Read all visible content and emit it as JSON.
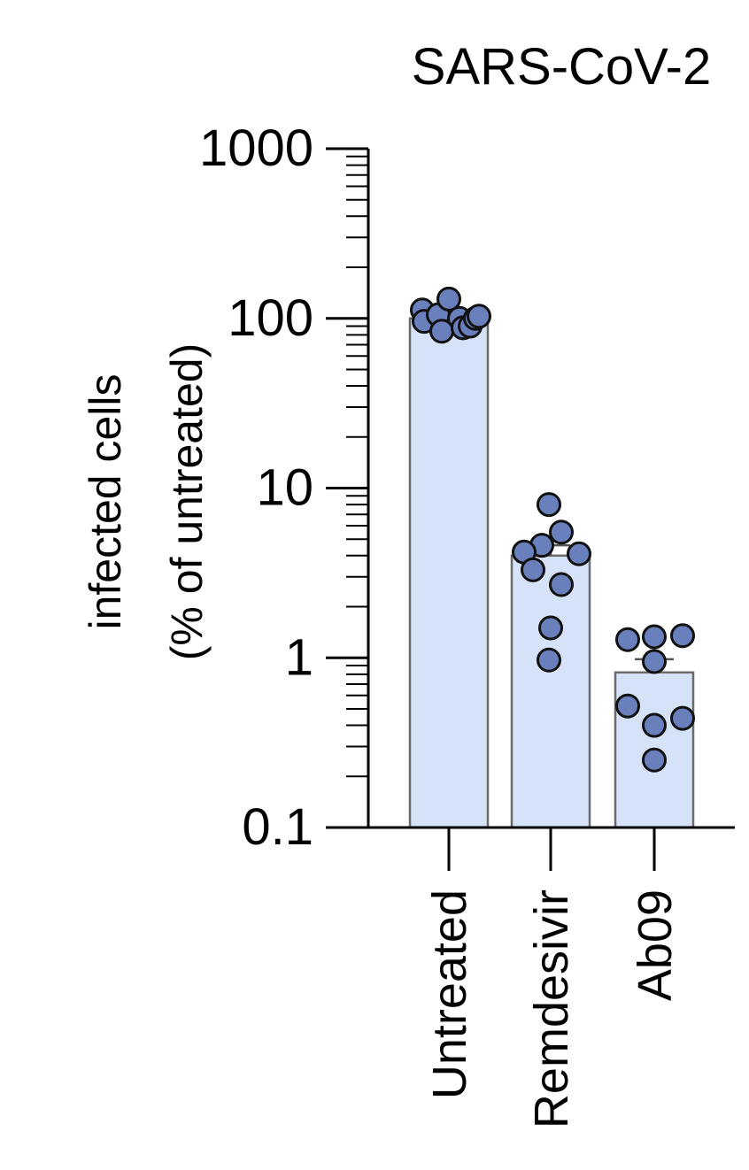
{
  "chart_data": {
    "type": "bar",
    "title": "SARS-CoV-2",
    "ylabel_line1": "infected cells",
    "ylabel_line2": "(% of untreated)",
    "xlabel": "",
    "yscale": "log",
    "ylim": [
      0.1,
      1000
    ],
    "yticks": [
      0.1,
      1,
      10,
      100,
      1000
    ],
    "ytick_labels": [
      "0.1",
      "1",
      "10",
      "100",
      "1000"
    ],
    "grid": false,
    "categories": [
      "Untreated",
      "Remdesivir",
      "Ab09"
    ],
    "values": [
      100,
      4.0,
      0.82
    ],
    "error_upper": [
      105,
      4.6,
      0.98
    ],
    "points": [
      [
        112,
        96,
        105,
        130,
        100,
        84,
        88,
        90,
        100,
        103
      ],
      [
        8.0,
        5.5,
        4.6,
        4.2,
        4.1,
        3.3,
        2.7,
        1.5,
        0.97
      ],
      [
        1.28,
        1.33,
        1.35,
        0.95,
        0.52,
        0.44,
        0.4,
        0.25
      ]
    ],
    "colors": {
      "bar_fill": "#d6e2f7",
      "bar_stroke": "#6b6b6b",
      "point_fill": "#6a80bd",
      "point_stroke": "#111111",
      "axis": "#000000"
    }
  }
}
